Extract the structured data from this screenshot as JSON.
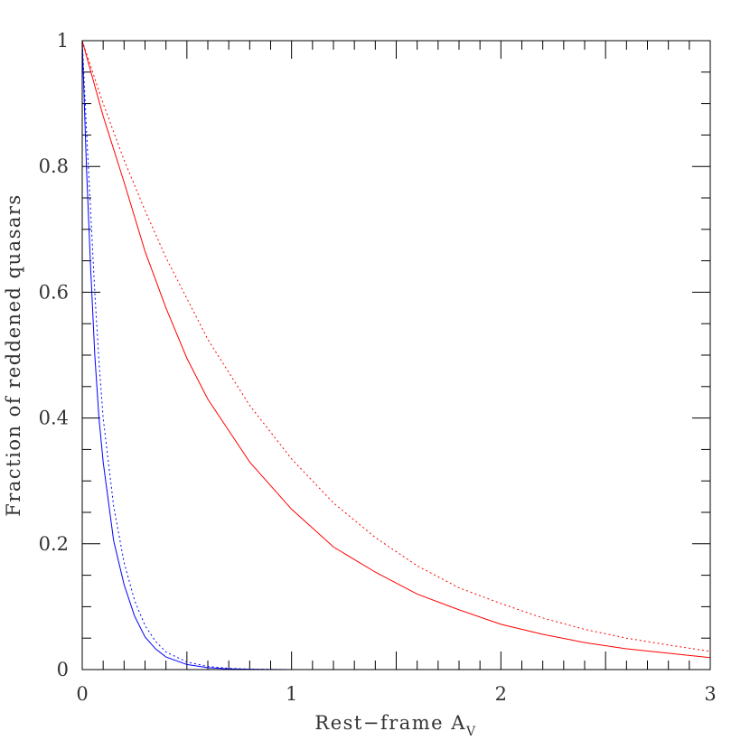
{
  "chart_data": {
    "type": "line",
    "title": "",
    "xlabel": "Rest−frame A",
    "xlabel_subscript": "V",
    "ylabel": "Fraction of reddened quasars",
    "xlim": [
      0,
      3
    ],
    "ylim": [
      0,
      1
    ],
    "x_ticks": [
      "0",
      "1",
      "2",
      "3"
    ],
    "y_ticks": [
      "0",
      "0.2",
      "0.4",
      "0.6",
      "0.8",
      "1"
    ],
    "grid": false,
    "legend": "none",
    "series": [
      {
        "color": "#ff0000",
        "style": "solid",
        "x": [
          0,
          0.1,
          0.2,
          0.3,
          0.4,
          0.5,
          0.6,
          0.8,
          1.0,
          1.2,
          1.4,
          1.6,
          1.8,
          2.0,
          2.2,
          2.4,
          2.6,
          2.8,
          3.0
        ],
        "y": [
          1.0,
          0.88,
          0.775,
          0.665,
          0.575,
          0.495,
          0.43,
          0.33,
          0.255,
          0.195,
          0.155,
          0.12,
          0.095,
          0.072,
          0.056,
          0.043,
          0.033,
          0.026,
          0.019
        ]
      },
      {
        "color": "#ff0000",
        "style": "dotted",
        "x": [
          0,
          0.1,
          0.2,
          0.3,
          0.4,
          0.5,
          0.6,
          0.8,
          1.0,
          1.2,
          1.4,
          1.6,
          1.8,
          2.0,
          2.2,
          2.4,
          2.6,
          2.8,
          3.0
        ],
        "y": [
          1.0,
          0.9,
          0.81,
          0.73,
          0.655,
          0.59,
          0.525,
          0.42,
          0.335,
          0.265,
          0.21,
          0.165,
          0.13,
          0.105,
          0.082,
          0.064,
          0.05,
          0.039,
          0.029
        ]
      },
      {
        "color": "#0000ff",
        "style": "solid",
        "x": [
          0,
          0.02,
          0.04,
          0.06,
          0.08,
          0.1,
          0.15,
          0.2,
          0.25,
          0.3,
          0.35,
          0.4,
          0.5,
          0.6,
          0.7,
          0.8,
          0.9,
          1.0
        ],
        "y": [
          1.0,
          0.8,
          0.64,
          0.5,
          0.4,
          0.33,
          0.205,
          0.135,
          0.085,
          0.052,
          0.033,
          0.02,
          0.008,
          0.003,
          0.001,
          0.0005,
          0.0002,
          0
        ]
      },
      {
        "color": "#0000ff",
        "style": "dotted",
        "x": [
          0,
          0.02,
          0.04,
          0.06,
          0.08,
          0.1,
          0.15,
          0.2,
          0.25,
          0.3,
          0.35,
          0.4,
          0.5,
          0.6,
          0.7,
          0.8,
          0.9,
          1.0
        ],
        "y": [
          1.0,
          0.86,
          0.73,
          0.6,
          0.49,
          0.4,
          0.26,
          0.17,
          0.11,
          0.07,
          0.045,
          0.028,
          0.012,
          0.005,
          0.002,
          0.0008,
          0.0003,
          0
        ]
      }
    ]
  }
}
